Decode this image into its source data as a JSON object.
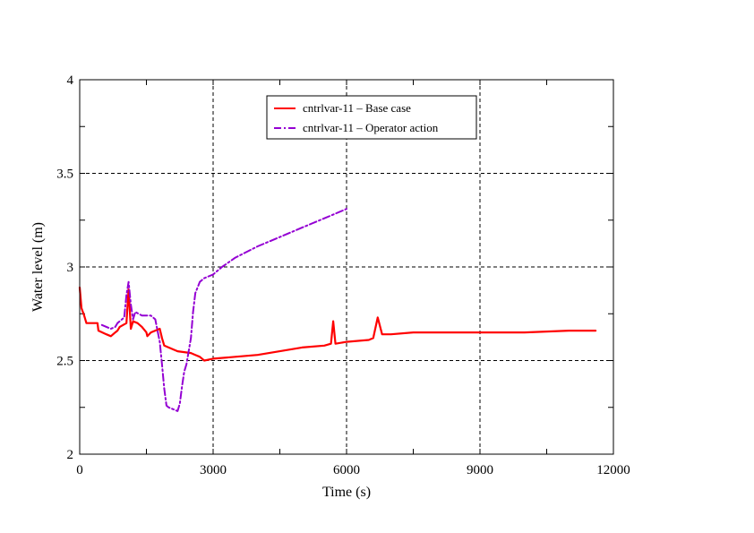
{
  "chart_data": {
    "type": "line",
    "xlabel": "Time (s)",
    "ylabel": "Water level (m)",
    "xlim": [
      0,
      12000
    ],
    "ylim": [
      2,
      4
    ],
    "x_ticks": [
      0,
      3000,
      6000,
      9000,
      12000
    ],
    "x_tick_labels": [
      "0",
      "3000",
      "6000",
      "9000",
      "12000"
    ],
    "y_ticks": [
      2,
      2.5,
      3,
      3.5,
      4
    ],
    "y_tick_labels": [
      "2",
      "2.5",
      "3",
      "3.5",
      "4"
    ],
    "grid": "dashed, at major ticks",
    "legend_position": "top-center",
    "series": [
      {
        "name": "cntrlvar-11 – Base case",
        "color": "#ff0000",
        "style": "solid",
        "x": [
          0,
          40,
          100,
          150,
          400,
          420,
          600,
          700,
          800,
          850,
          900,
          1050,
          1100,
          1150,
          1200,
          1300,
          1400,
          1500,
          1520,
          1600,
          1800,
          1850,
          1900,
          2000,
          2200,
          2500,
          2600,
          2700,
          2800,
          3000,
          3500,
          4000,
          4500,
          5000,
          5500,
          5650,
          5700,
          5750,
          6000,
          6500,
          6600,
          6700,
          6800,
          7000,
          7500,
          8000,
          9000,
          10000,
          11000,
          11600
        ],
        "y": [
          2.89,
          2.78,
          2.74,
          2.7,
          2.7,
          2.66,
          2.64,
          2.63,
          2.65,
          2.66,
          2.68,
          2.7,
          2.88,
          2.67,
          2.71,
          2.7,
          2.68,
          2.65,
          2.63,
          2.65,
          2.67,
          2.62,
          2.58,
          2.57,
          2.55,
          2.54,
          2.53,
          2.52,
          2.5,
          2.51,
          2.52,
          2.53,
          2.55,
          2.57,
          2.58,
          2.59,
          2.71,
          2.59,
          2.6,
          2.61,
          2.62,
          2.73,
          2.64,
          2.64,
          2.65,
          2.65,
          2.65,
          2.65,
          2.66,
          2.66
        ]
      },
      {
        "name": "cntrlvar-11 – Operator action",
        "color": "#9400d3",
        "style": "dash-dot",
        "x": [
          500,
          600,
          700,
          800,
          850,
          1000,
          1050,
          1100,
          1150,
          1200,
          1250,
          1400,
          1600,
          1700,
          1800,
          1850,
          1900,
          1950,
          2000,
          2100,
          2200,
          2250,
          2300,
          2350,
          2400,
          2450,
          2500,
          2550,
          2600,
          2700,
          2800,
          3000,
          3200,
          3500,
          4000,
          4500,
          5000,
          5500,
          6000
        ],
        "y": [
          2.69,
          2.68,
          2.67,
          2.68,
          2.7,
          2.73,
          2.85,
          2.92,
          2.8,
          2.72,
          2.76,
          2.74,
          2.74,
          2.72,
          2.6,
          2.48,
          2.35,
          2.26,
          2.25,
          2.24,
          2.23,
          2.27,
          2.36,
          2.44,
          2.48,
          2.55,
          2.62,
          2.76,
          2.86,
          2.92,
          2.94,
          2.96,
          3.0,
          3.05,
          3.11,
          3.16,
          3.21,
          3.26,
          3.31
        ]
      }
    ]
  }
}
